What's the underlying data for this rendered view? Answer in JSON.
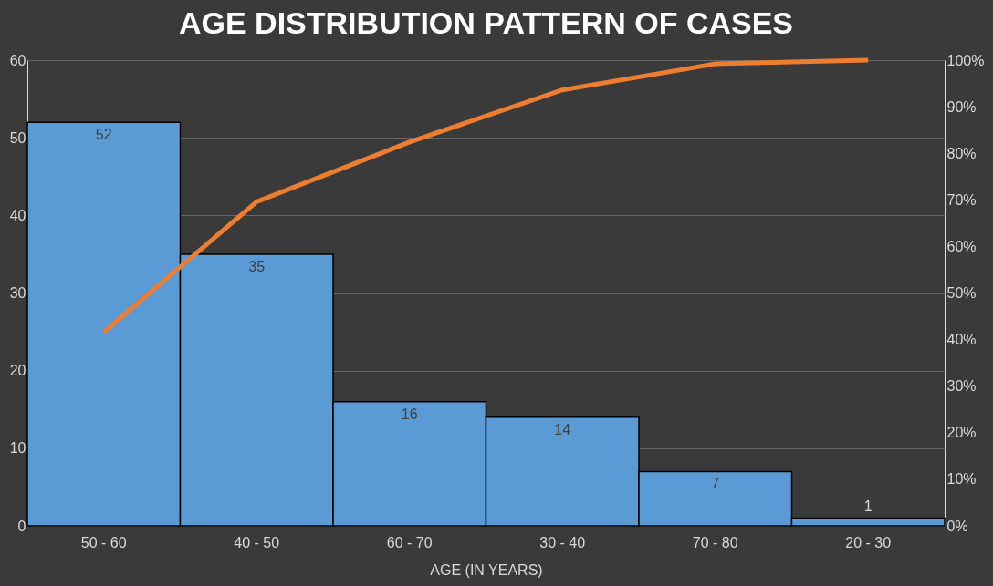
{
  "chart_data": {
    "type": "bar",
    "title": "AGE DISTRIBUTION PATTERN OF CASES",
    "xlabel": "AGE (IN YEARS)",
    "categories": [
      "50 - 60",
      "40 - 50",
      "60 - 70",
      "30 - 40",
      "70 - 80",
      "20 - 30"
    ],
    "series": [
      {
        "color": "#5b9bd5",
        "values": [
          52,
          35,
          16,
          14,
          7,
          1
        ],
        "value_labels": [
          "52",
          "35",
          "16",
          "14",
          "7",
          "1"
        ]
      },
      {
        "type": "line",
        "axis": "y2",
        "color": "#ed7d31",
        "values": [
          41.6,
          69.6,
          82.4,
          93.6,
          99.2,
          100
        ]
      }
    ],
    "ylim": [
      0,
      60
    ],
    "yticks": [
      0,
      10,
      20,
      30,
      40,
      50,
      60
    ],
    "y2lim": [
      0,
      100
    ],
    "y2ticks": [
      {
        "value": 0,
        "label": "0%"
      },
      {
        "value": 10,
        "label": "10%"
      },
      {
        "value": 20,
        "label": "20%"
      },
      {
        "value": 30,
        "label": "30%"
      },
      {
        "value": 40,
        "label": "40%"
      },
      {
        "value": 50,
        "label": "50%"
      },
      {
        "value": 60,
        "label": "60%"
      },
      {
        "value": 70,
        "label": "70%"
      },
      {
        "value": 80,
        "label": "80%"
      },
      {
        "value": 90,
        "label": "90%"
      },
      {
        "value": 100,
        "label": "100%"
      }
    ],
    "grid": "y",
    "marker": "none",
    "line_style": "solid"
  }
}
